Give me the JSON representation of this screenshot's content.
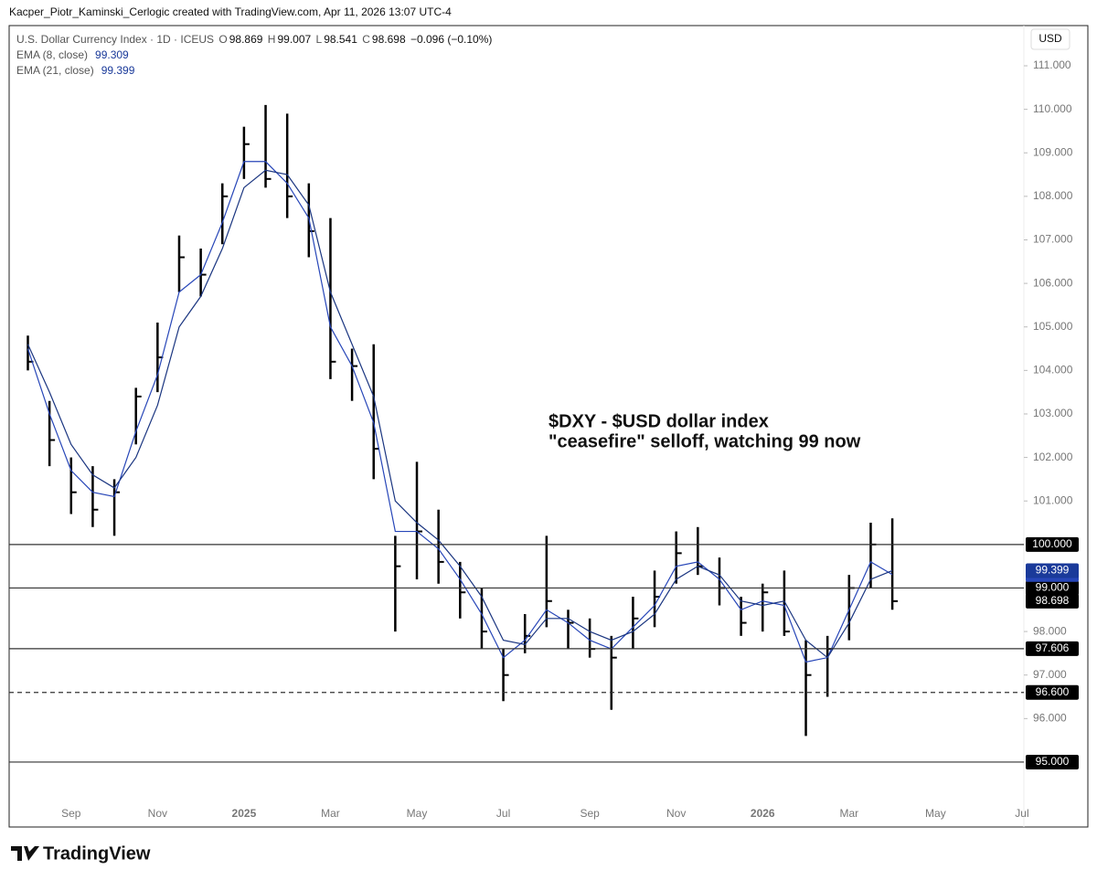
{
  "header": "Kacper_Piotr_Kaminski_Cerlogic created with TradingView.com, Apr 11, 2026 13:07 UTC-4",
  "footer_logo": "TradingView",
  "chart_data": {
    "type": "ohlc",
    "title": "U.S. Dollar Currency Index · 1D · ICEUS",
    "currency": "USD",
    "legend": {
      "open_label": "O",
      "open": 98.869,
      "high_label": "H",
      "high": 99.007,
      "low_label": "L",
      "low": 98.541,
      "close_label": "C",
      "change": "−0.096 (−0.10%)"
    },
    "categories": [
      null,
      null,
      "Sep",
      null,
      null,
      null,
      "Nov",
      null,
      null,
      null,
      "2025",
      null,
      null,
      null,
      "Mar",
      null,
      null,
      null,
      "May",
      null,
      null,
      null,
      "Jul",
      null,
      null,
      null,
      "Sep",
      null,
      null,
      null,
      "Nov",
      null,
      null,
      null,
      "2026",
      null,
      null,
      null,
      "Mar",
      null,
      null,
      null,
      "May",
      null,
      null,
      null,
      "Jul"
    ],
    "color": "#000000",
    "high": [
      104.8,
      103.3,
      102.0,
      101.8,
      101.5,
      103.6,
      105.1,
      107.1,
      106.8,
      108.3,
      109.6,
      110.1,
      109.9,
      108.3,
      107.5,
      104.5,
      104.6,
      100.2,
      101.9,
      100.8,
      99.6,
      99.0,
      97.6,
      98.4,
      100.2,
      98.5,
      98.3,
      97.9,
      98.8,
      99.4,
      100.3,
      100.4,
      99.7,
      98.8,
      99.1,
      99.4,
      97.8,
      97.9,
      99.3,
      100.5,
      100.6,
      null,
      null,
      null,
      null,
      null,
      null
    ],
    "low": [
      104.0,
      101.8,
      100.7,
      100.4,
      100.2,
      102.3,
      103.5,
      105.8,
      105.7,
      106.9,
      108.4,
      108.2,
      107.5,
      106.6,
      103.8,
      103.3,
      101.5,
      98.0,
      99.2,
      99.1,
      98.3,
      97.6,
      96.4,
      97.5,
      98.1,
      97.6,
      97.4,
      96.2,
      97.6,
      98.1,
      99.1,
      99.3,
      98.6,
      97.9,
      98.0,
      97.9,
      95.6,
      96.5,
      97.8,
      99.0,
      98.5,
      null,
      null,
      null,
      null,
      null,
      null
    ],
    "close": [
      104.2,
      102.4,
      101.2,
      100.8,
      101.2,
      103.4,
      104.3,
      106.6,
      106.2,
      108.0,
      109.2,
      108.4,
      108.0,
      107.2,
      104.2,
      104.1,
      102.2,
      99.5,
      100.3,
      99.6,
      98.9,
      98.0,
      97.0,
      97.9,
      98.7,
      98.2,
      97.6,
      97.4,
      98.3,
      98.8,
      99.8,
      99.5,
      99.0,
      98.2,
      98.9,
      98.0,
      97.0,
      97.6,
      99.0,
      100.0,
      98.698,
      null,
      null,
      null,
      null,
      null,
      null
    ],
    "series": [
      {
        "name": "EMA (8, close)",
        "color": "#2746b8",
        "values": [
          104.5,
          103.0,
          101.7,
          101.2,
          101.1,
          102.6,
          103.9,
          105.8,
          106.2,
          107.4,
          108.8,
          108.8,
          108.3,
          107.5,
          105.0,
          104.1,
          102.8,
          100.3,
          100.3,
          99.9,
          99.2,
          98.4,
          97.4,
          97.8,
          98.5,
          98.2,
          97.8,
          97.6,
          98.1,
          98.6,
          99.5,
          99.6,
          99.2,
          98.5,
          98.7,
          98.6,
          97.3,
          97.4,
          98.5,
          99.6,
          99.309,
          null,
          null,
          null,
          null,
          null,
          null
        ]
      },
      {
        "name": "EMA (21, close)",
        "color": "#1a3580",
        "values": [
          104.6,
          103.5,
          102.3,
          101.6,
          101.3,
          102.0,
          103.2,
          105.0,
          105.7,
          106.8,
          108.2,
          108.6,
          108.5,
          107.8,
          105.8,
          104.6,
          103.4,
          101.0,
          100.5,
          100.1,
          99.5,
          98.8,
          97.8,
          97.7,
          98.3,
          98.3,
          98.0,
          97.8,
          98.0,
          98.4,
          99.2,
          99.5,
          99.3,
          98.7,
          98.6,
          98.7,
          97.8,
          97.4,
          98.2,
          99.2,
          99.399,
          null,
          null,
          null,
          null,
          null,
          null
        ]
      }
    ],
    "ylim": [
      93.508,
      111.924
    ],
    "yticks": [
      {
        "value": 111,
        "label": "111.000"
      },
      {
        "value": 110,
        "label": "110.000"
      },
      {
        "value": 109,
        "label": "109.000"
      },
      {
        "value": 108,
        "label": "108.000"
      },
      {
        "value": 107,
        "label": "107.000"
      },
      {
        "value": 106,
        "label": "106.000"
      },
      {
        "value": 105,
        "label": "105.000"
      },
      {
        "value": 104,
        "label": "104.000"
      },
      {
        "value": 103,
        "label": "103.000"
      },
      {
        "value": 102,
        "label": "102.000"
      },
      {
        "value": 101,
        "label": "101.000"
      },
      {
        "value": 98,
        "label": "98.000"
      },
      {
        "value": 97,
        "label": "97.000"
      },
      {
        "value": 96,
        "label": "96.000"
      }
    ],
    "levels": [
      {
        "value": 100,
        "label": "100.000",
        "dashed": false
      },
      {
        "value": 99,
        "label": "99.000",
        "dashed": false
      },
      {
        "value": 97.606,
        "label": "97.606",
        "dashed": false
      },
      {
        "value": 96.6,
        "label": "96.600",
        "dashed": true
      },
      {
        "value": 95,
        "label": "95.000",
        "dashed": false
      }
    ],
    "annotations": [
      "$DXY - $USD dollar index",
      "\"ceasefire\" selloff, watching 99 now"
    ]
  }
}
